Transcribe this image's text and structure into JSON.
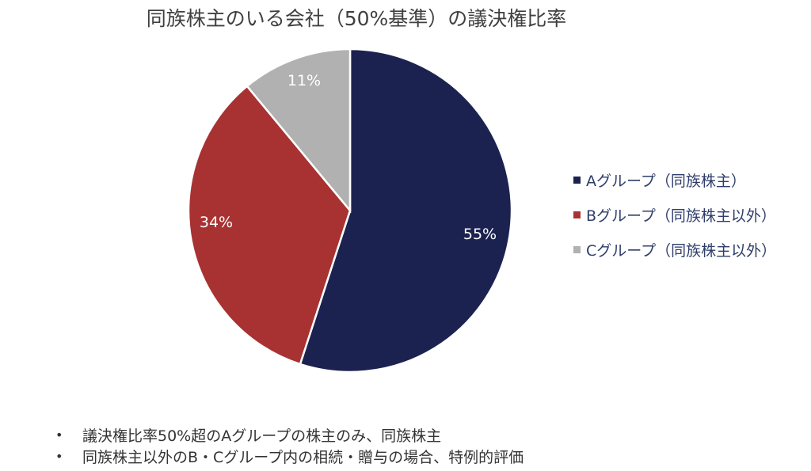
{
  "chart_data": {
    "type": "pie",
    "title": "同族株主のいる会社（50%基準）の議決権比率",
    "categories": [
      "Aグループ（同族株主）",
      "Bグループ（同族株主以外）",
      "Cグループ（同族株主以外）"
    ],
    "values": [
      55,
      34,
      11
    ],
    "labels": [
      "55%",
      "34%",
      "11%"
    ],
    "colors": [
      "#1c2250",
      "#a83232",
      "#b1b1b1"
    ],
    "start_angle": "12 o'clock",
    "direction": "clockwise",
    "legend_position": "right"
  },
  "title": "同族株主のいる会社（50%基準）の議決権比率",
  "legend": {
    "items": [
      {
        "label": "Aグループ（同族株主）",
        "color": "#1c2250"
      },
      {
        "label": "Bグループ（同族株主以外）",
        "color": "#a83232"
      },
      {
        "label": "Cグループ（同族株主以外）",
        "color": "#b1b1b1"
      }
    ]
  },
  "slice_labels": {
    "a": "55%",
    "b": "34%",
    "c": "11%"
  },
  "notes": {
    "bullet": "•",
    "items": [
      "議決権比率50%超のAグループの株主のみ、同族株主",
      "同族株主以外のB・Cグループ内の相続・贈与の場合、特例的評価"
    ]
  }
}
